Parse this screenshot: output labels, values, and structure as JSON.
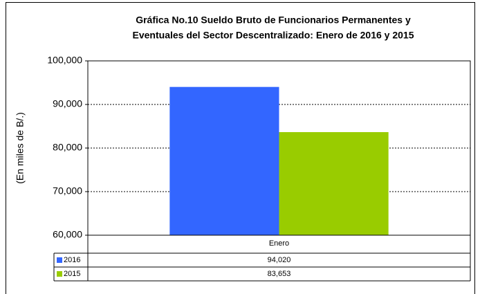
{
  "chart_data": {
    "type": "bar",
    "title": [
      "Gráfica No.10 Sueldo Bruto de Funcionarios Permanentes y",
      "Eventuales del Sector Descentralizado: Enero de 2016 y 2015"
    ],
    "ylabel": "(En miles de B/.)",
    "categories": [
      "Enero"
    ],
    "series": [
      {
        "name": "2016",
        "color": "#3366ff",
        "values": [
          94020
        ],
        "value_labels": [
          "94,020"
        ]
      },
      {
        "name": "2015",
        "color": "#99cc00",
        "values": [
          83653
        ],
        "value_labels": [
          "83,653"
        ]
      }
    ],
    "ylim": [
      60000,
      100000
    ],
    "yticks": [
      {
        "value": 60000,
        "label": "60,000"
      },
      {
        "value": 70000,
        "label": "70,000"
      },
      {
        "value": 80000,
        "label": "80,000"
      },
      {
        "value": 90000,
        "label": "90,000"
      },
      {
        "value": 100000,
        "label": "100,000"
      }
    ],
    "grid": true
  }
}
